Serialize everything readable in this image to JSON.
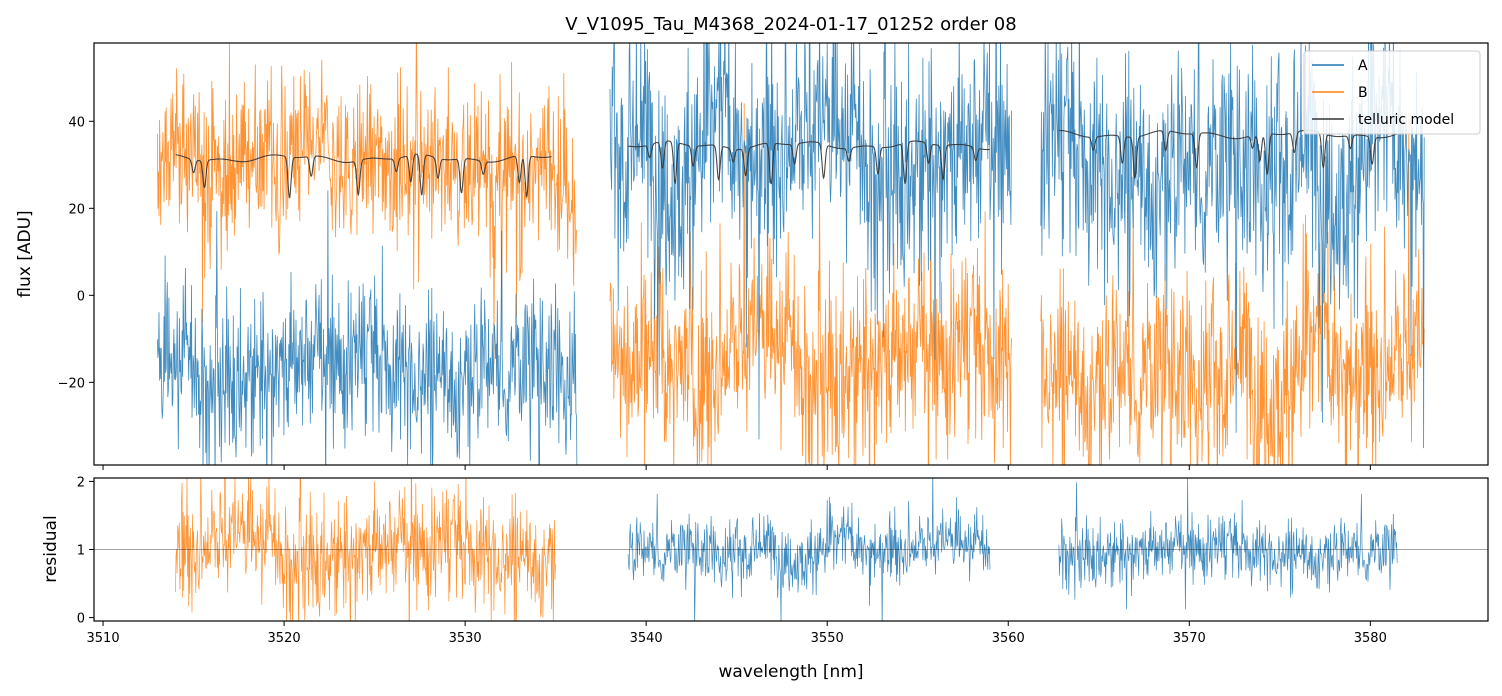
{
  "chart_data": {
    "type": "line",
    "title": "V_V1095_Tau_M4368_2024-01-17_01252  order 08",
    "xlabel": "wavelength [nm]",
    "xlim": [
      3509.5,
      3586.5
    ],
    "xticks": [
      3510,
      3520,
      3530,
      3540,
      3550,
      3560,
      3570,
      3580
    ],
    "panels": {
      "flux": {
        "ylabel": "flux [ADU]",
        "ylim": [
          -39,
          58
        ],
        "yticks": [
          40,
          20,
          0,
          -20
        ],
        "ytick_labels": [
          "40",
          "20",
          "0",
          "−20"
        ]
      },
      "residual": {
        "ylabel": "residual",
        "ylim": [
          -0.05,
          2.05
        ],
        "yticks": [
          2,
          1,
          0
        ],
        "ytick_labels": [
          "2",
          "1",
          "0"
        ],
        "reference_line": 1
      }
    },
    "legend": {
      "location": "upper right",
      "entries": [
        {
          "name": "A",
          "color": "#1f77b4"
        },
        {
          "name": "B",
          "color": "#ff7f0e"
        },
        {
          "name": "telluric model",
          "color": "#333333"
        }
      ]
    },
    "series": [
      {
        "name": "A",
        "color": "#1f77b4",
        "segments": [
          {
            "x": [
              3513.0,
              3536.2
            ],
            "mean": -15,
            "noise": 9
          },
          {
            "x": [
              3538.0,
              3560.2
            ],
            "mean": 34,
            "noise": 13
          },
          {
            "x": [
              3561.8,
              3583.0
            ],
            "mean": 32,
            "noise": 13
          }
        ]
      },
      {
        "name": "B",
        "color": "#ff7f0e",
        "segments": [
          {
            "x": [
              3513.0,
              3536.2
            ],
            "mean": 30,
            "noise": 9
          },
          {
            "x": [
              3538.0,
              3560.2
            ],
            "mean": -13,
            "noise": 11
          },
          {
            "x": [
              3561.8,
              3583.0
            ],
            "mean": -16,
            "noise": 11
          }
        ]
      },
      {
        "name": "telluric model",
        "color": "#333333",
        "segments": [
          {
            "x": [
              3514.0,
              3534.8
            ],
            "level": 31.5,
            "lines": [
              3515.0,
              3515.6,
              3520.3,
              3521.5,
              3524.1,
              3526.2,
              3527.0,
              3527.6,
              3528.5,
              3529.8,
              3531.0,
              3533.0,
              3533.4
            ]
          },
          {
            "x": [
              3539.0,
              3559.0
            ],
            "level": 34.5,
            "lines": [
              3540.2,
              3540.9,
              3541.6,
              3542.6,
              3544.0,
              3544.8,
              3545.5,
              3546.9,
              3548.2,
              3549.8,
              3551.2,
              3552.8,
              3554.3,
              3555.6,
              3556.4,
              3558.2
            ]
          },
          {
            "x": [
              3562.8,
              3581.5
            ],
            "level": 37.0,
            "lines": [
              3564.7,
              3566.3,
              3567.0,
              3568.7,
              3570.4,
              3573.5,
              3573.9,
              3574.3,
              3575.8,
              3577.4,
              3578.9,
              3580.1
            ]
          }
        ]
      }
    ],
    "residual_series": [
      {
        "name": "B",
        "color": "#ff7f0e",
        "segments": [
          {
            "x": [
              3514.0,
              3535.0
            ],
            "mean": 1.05,
            "noise": 0.42
          }
        ]
      },
      {
        "name": "A",
        "color": "#1f77b4",
        "segments": [
          {
            "x": [
              3539.0,
              3559.0
            ],
            "mean": 1.02,
            "noise": 0.24
          },
          {
            "x": [
              3562.8,
              3581.5
            ],
            "mean": 1.02,
            "noise": 0.24
          }
        ]
      }
    ]
  }
}
